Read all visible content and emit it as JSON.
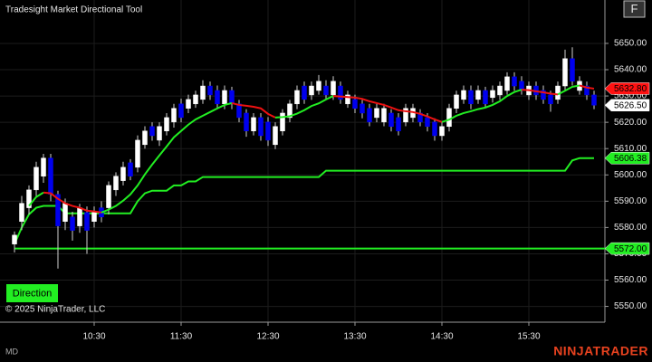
{
  "header": {
    "title": "Tradesight Market Directional Tool",
    "corner_button": "F"
  },
  "controls": {
    "button": "Direction",
    "copyright": "© 2025 NinjaTrader, LLC"
  },
  "footer": {
    "status": "MD",
    "logo": "NINJATRADER"
  },
  "chart_data": {
    "type": "candlestick",
    "x": [
      575,
      580,
      585,
      590,
      595,
      600,
      605,
      610,
      615,
      620,
      625,
      630,
      635,
      640,
      645,
      650,
      655,
      660,
      665,
      670,
      675,
      680,
      685,
      690,
      695,
      700,
      705,
      710,
      715,
      720,
      725,
      730,
      735,
      740,
      745,
      750,
      755,
      760,
      765,
      770,
      775,
      780,
      785,
      790,
      795,
      800,
      805,
      810,
      815,
      820,
      825,
      830,
      835,
      840,
      845,
      850,
      855,
      860,
      865,
      870,
      875,
      880,
      885,
      890,
      895,
      900,
      905,
      910,
      915,
      920,
      925,
      930,
      935,
      940,
      945,
      950,
      955,
      960,
      965,
      970,
      975
    ],
    "open": [
      5573.7,
      5582.3,
      5587.5,
      5594.3,
      5599.5,
      5606.4,
      5592.6,
      5582.3,
      5584.0,
      5580.6,
      5585.7,
      5582.3,
      5587.5,
      5587.5,
      5594.3,
      5597.8,
      5604.6,
      5602.9,
      5611.5,
      5618.4,
      5613.2,
      5616.7,
      5620.1,
      5627.0,
      5625.3,
      5627.0,
      5628.7,
      5633.8,
      5632.1,
      5627.0,
      5632.1,
      5627.0,
      5623.5,
      5616.7,
      5621.8,
      5620.1,
      5611.5,
      5616.7,
      5621.8,
      5627.0,
      5633.8,
      5630.4,
      5632.1,
      5633.8,
      5630.4,
      5633.8,
      5627.0,
      5628.7,
      5627.0,
      5625.3,
      5621.8,
      5620.1,
      5623.5,
      5621.8,
      5620.1,
      5621.8,
      5623.5,
      5621.8,
      5620.1,
      5614.9,
      5618.4,
      5625.3,
      5628.7,
      5632.1,
      5628.7,
      5632.1,
      5629.4,
      5630.4,
      5632.1,
      5637.3,
      5635.6,
      5630.4,
      5633.8,
      5632.1,
      5630.4,
      5628.7,
      5633.8,
      5644.2,
      5632.1,
      5633.8,
      5630.4
    ],
    "high": [
      5578.5,
      5592,
      5596,
      5605,
      5608,
      5608,
      5594,
      5591,
      5586,
      5589,
      5588,
      5588,
      5590,
      5597.5,
      5601,
      5605,
      5606,
      5615,
      5618.5,
      5620,
      5620,
      5623.5,
      5627,
      5629,
      5630.5,
      5632,
      5636,
      5635.5,
      5634,
      5634,
      5633.5,
      5628.5,
      5625,
      5623.5,
      5623.5,
      5622,
      5620,
      5625,
      5628.5,
      5634,
      5635.5,
      5635.5,
      5638,
      5636,
      5637.5,
      5635.5,
      5632,
      5630.5,
      5628.5,
      5627,
      5627,
      5627,
      5625,
      5623.5,
      5627,
      5627,
      5625,
      5623.5,
      5621.5,
      5620,
      5627,
      5632,
      5634,
      5634,
      5634,
      5633.5,
      5634,
      5635.5,
      5639,
      5639,
      5637.5,
      5635.5,
      5635.5,
      5634,
      5632,
      5635.5,
      5647.6,
      5648.5,
      5637.5,
      5635.5,
      5632
    ],
    "low": [
      5570.5,
      5579,
      5585,
      5592,
      5597,
      5590,
      5564.4,
      5579,
      5575,
      5578,
      5570,
      5580,
      5582,
      5585,
      5592,
      5596,
      5598,
      5601,
      5610,
      5613,
      5611,
      5615,
      5618,
      5620,
      5623.5,
      5625.5,
      5627,
      5628.5,
      5625,
      5625,
      5625,
      5620,
      5614.5,
      5615,
      5613,
      5611,
      5609.8,
      5615,
      5620,
      5625,
      5627,
      5628.5,
      5630.5,
      5628.5,
      5628.5,
      5627,
      5625.5,
      5623.5,
      5621.5,
      5618.5,
      5620,
      5618.5,
      5616.5,
      5615,
      5618.5,
      5620,
      5618.5,
      5616.5,
      5613,
      5613,
      5616.5,
      5623.5,
      5627,
      5625,
      5627,
      5625.5,
      5627.5,
      5628.5,
      5630.5,
      5632,
      5630.5,
      5628.5,
      5628.5,
      5627,
      5624,
      5627,
      5632,
      5634,
      5630.5,
      5628.5,
      5625
    ],
    "close": [
      5577.1,
      5589.2,
      5594.3,
      5602.9,
      5606.4,
      5592.6,
      5580.6,
      5589.2,
      5578.9,
      5587.5,
      5578.9,
      5585.7,
      5584.0,
      5596.0,
      5599.5,
      5602.9,
      5599.5,
      5613.2,
      5616.7,
      5614.9,
      5618.4,
      5621.8,
      5625.3,
      5621.8,
      5628.7,
      5630.4,
      5633.8,
      5630.4,
      5627.0,
      5632.1,
      5627.0,
      5621.8,
      5616.7,
      5621.8,
      5614.9,
      5613.2,
      5618.4,
      5623.5,
      5627.0,
      5632.1,
      5628.7,
      5633.8,
      5635.6,
      5630.4,
      5635.6,
      5628.7,
      5630.4,
      5625.3,
      5623.5,
      5620.1,
      5625.3,
      5625.3,
      5618.4,
      5616.7,
      5625.3,
      5625.3,
      5620.1,
      5618.4,
      5614.9,
      5618.4,
      5625.3,
      5630.4,
      5632.1,
      5627.0,
      5632.1,
      5627.0,
      5632.1,
      5633.8,
      5637.3,
      5633.8,
      5632.1,
      5633.8,
      5630.4,
      5628.7,
      5627.0,
      5633.8,
      5644.2,
      5635.6,
      5635.6,
      5630.4,
      5626.5
    ],
    "up_color": "#ffffff",
    "down_color": "#0000ee",
    "wick_color": "#d0d0d0",
    "series": [
      {
        "values": [
          null,
          null,
          5588.2,
          5591.6,
          5593.3,
          5593.0,
          5590.9,
          5589.2,
          5588.2,
          5587.5,
          5586.4,
          5586.1,
          5585.7,
          5586.8,
          5588.2,
          5590.2,
          5592.6,
          5596.0,
          5600.2,
          5603.9,
          5607.4,
          5610.8,
          5614.3,
          5616.7,
          5619.1,
          5621.1,
          5622.5,
          5623.9,
          5625.3,
          5626.6,
          5627.3,
          5626.6,
          5626.3,
          5625.9,
          5625.3,
          5623.2,
          5621.8,
          5622.0,
          5622.3,
          5623.3,
          5624.6,
          5626.2,
          5627.2,
          5628.7,
          5630.0,
          5629.8,
          5629.6,
          5629.4,
          5628.9,
          5628.0,
          5627.3,
          5626.6,
          5625.6,
          5624.6,
          5624.2,
          5623.9,
          5623.2,
          5622.2,
          5621.1,
          5620.1,
          5621.0,
          5622.5,
          5623.5,
          5624.2,
          5625.0,
          5625.6,
          5626.6,
          5628.0,
          5630.0,
          5631.5,
          5632.4,
          5632.2,
          5631.8,
          5631.4,
          5630.9,
          5630.6,
          5632.0,
          5633.5,
          5634.0,
          5633.2,
          5632.8
        ],
        "rising_color": "#22ee22",
        "falling_color": "#ee1111"
      },
      {
        "values": [
          5573.7,
          5580.0,
          5585.0,
          5587.5,
          5588.2,
          5588.2,
          5588.2,
          5585.4,
          5585.4,
          5585.4,
          5585.4,
          5585.4,
          5585.4,
          5585.4,
          5585.4,
          5585.4,
          5585.4,
          5590.0,
          5593.0,
          5594.0,
          5594.0,
          5594.0,
          5596.0,
          5596.0,
          5597.5,
          5597.5,
          5599.2,
          5599.2,
          5599.2,
          5599.2,
          5599.2,
          5599.2,
          5599.2,
          5599.2,
          5599.2,
          5599.2,
          5599.2,
          5599.2,
          5599.2,
          5599.2,
          5599.2,
          5599.2,
          5599.2,
          5601.6,
          5601.6,
          5601.6,
          5601.6,
          5601.6,
          5601.6,
          5601.6,
          5601.6,
          5601.6,
          5601.6,
          5601.6,
          5601.6,
          5601.6,
          5601.6,
          5601.6,
          5601.6,
          5601.6,
          5601.6,
          5601.6,
          5601.6,
          5601.6,
          5601.6,
          5601.6,
          5601.6,
          5601.6,
          5601.6,
          5601.6,
          5601.6,
          5601.6,
          5601.6,
          5601.6,
          5601.6,
          5601.6,
          5601.6,
          5605.5,
          5606.38,
          5606.38,
          5606.38
        ],
        "color": "#22ee22"
      }
    ],
    "price_markers": [
      {
        "value": 5632.8,
        "label": "5632.80",
        "color": "#ff1111"
      },
      {
        "value": 5626.5,
        "label": "5626.50",
        "color": "#ffffff"
      },
      {
        "value": 5606.38,
        "label": "5606.38",
        "color": "#22ee22"
      },
      {
        "value": 5572,
        "label": "5572.00",
        "color": "#22ee22",
        "line": true
      }
    ],
    "xlim": [
      565,
      982.5
    ],
    "ylim": [
      5544,
      5666.5
    ],
    "xticks": [
      {
        "value": 630,
        "label": "10:30"
      },
      {
        "value": 690,
        "label": "11:30"
      },
      {
        "value": 750,
        "label": "12:30"
      },
      {
        "value": 810,
        "label": "13:30"
      },
      {
        "value": 870,
        "label": "14:30"
      },
      {
        "value": 930,
        "label": "15:30"
      }
    ],
    "yticks": [
      {
        "value": 5550,
        "label": "5550.00"
      },
      {
        "value": 5560,
        "label": "5560.00"
      },
      {
        "value": 5570,
        "label": "5570.00"
      },
      {
        "value": 5580,
        "label": "5580.00"
      },
      {
        "value": 5590,
        "label": "5590.00"
      },
      {
        "value": 5600,
        "label": "5600.00"
      },
      {
        "value": 5610,
        "label": "5610.00"
      },
      {
        "value": 5620,
        "label": "5620.00"
      },
      {
        "value": 5630,
        "label": "5630.00"
      },
      {
        "value": 5640,
        "label": "5640.00"
      },
      {
        "value": 5650,
        "label": "5650.00"
      }
    ],
    "grid": true
  }
}
